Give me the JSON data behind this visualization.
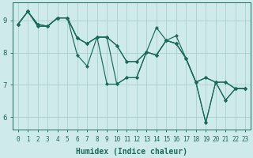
{
  "title": "",
  "xlabel": "Humidex (Indice chaleur)",
  "bg_color": "#ceeaea",
  "line_color": "#1a6b5a",
  "grid_color": "#aacfcf",
  "xmin": -0.5,
  "xmax": 23.5,
  "ymin": 5.6,
  "ymax": 9.55,
  "yticks": [
    6,
    7,
    8,
    9
  ],
  "xticks": [
    0,
    1,
    2,
    3,
    4,
    5,
    6,
    7,
    8,
    9,
    10,
    11,
    12,
    13,
    14,
    15,
    16,
    17,
    18,
    19,
    20,
    21,
    22,
    23
  ],
  "lines": [
    [
      8.88,
      9.28,
      8.88,
      8.82,
      9.08,
      9.08,
      8.45,
      8.28,
      8.48,
      7.02,
      7.02,
      7.22,
      7.22,
      8.02,
      7.92,
      8.38,
      8.28,
      7.82,
      7.08,
      5.82,
      7.08,
      6.52,
      6.88,
      6.88
    ],
    [
      8.88,
      9.28,
      8.82,
      8.82,
      9.08,
      9.08,
      8.45,
      8.28,
      8.48,
      8.48,
      8.22,
      7.72,
      7.72,
      8.02,
      7.92,
      8.38,
      8.28,
      7.82,
      7.08,
      7.22,
      7.08,
      7.08,
      6.88,
      6.88
    ],
    [
      8.88,
      9.28,
      8.82,
      8.82,
      9.08,
      9.08,
      7.92,
      7.58,
      8.48,
      8.48,
      7.02,
      7.22,
      7.22,
      8.02,
      8.78,
      8.38,
      8.52,
      7.82,
      7.08,
      5.82,
      7.08,
      6.52,
      6.88,
      6.88
    ],
    [
      8.88,
      9.28,
      8.88,
      8.82,
      9.08,
      9.08,
      8.45,
      8.28,
      8.48,
      8.48,
      8.22,
      7.72,
      7.72,
      8.02,
      7.92,
      8.38,
      8.28,
      7.82,
      7.08,
      7.22,
      7.08,
      7.08,
      6.88,
      6.88
    ]
  ],
  "xlabel_fontsize": 7,
  "tick_fontsize": 5.5,
  "linewidth": 0.85,
  "markersize": 2.2
}
